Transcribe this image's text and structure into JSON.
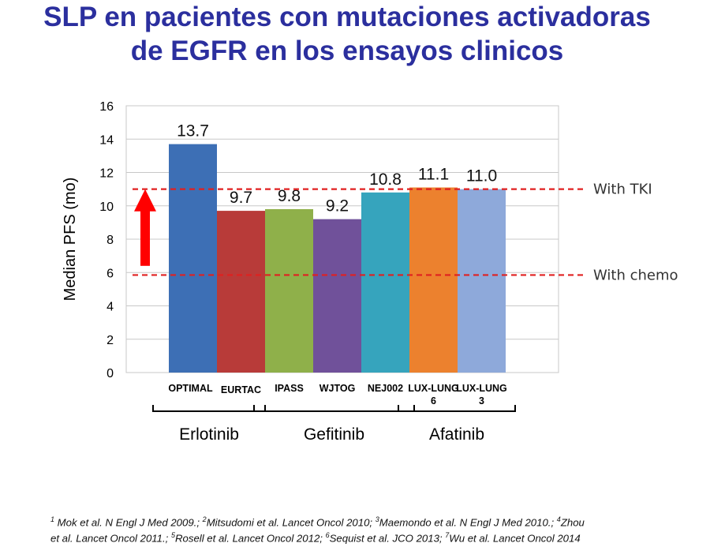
{
  "title": {
    "line1": "SLP en pacientes con mutaciones activadoras",
    "line2": "de EGFR en los ensayos clinicos"
  },
  "chart_data": {
    "type": "bar",
    "categories": [
      "OPTIMAL",
      "EURTAC",
      "IPASS",
      "WJTOG",
      "NEJ002",
      "LUX-LUNG 6",
      "LUX-LUNG 3"
    ],
    "category_lines": [
      [
        "OPTIMAL"
      ],
      [
        "EURTAC"
      ],
      [
        "IPASS"
      ],
      [
        "WJTOG"
      ],
      [
        "NEJ002"
      ],
      [
        "LUX-LUNG",
        "6"
      ],
      [
        "LUX-LUNG",
        "3"
      ]
    ],
    "values": [
      13.7,
      9.7,
      9.8,
      9.2,
      10.8,
      11.1,
      11.0
    ],
    "value_labels": [
      "13.7",
      "9.7",
      "9.8",
      "9.2",
      "10.8",
      "11.1",
      "11.0"
    ],
    "bar_colors": [
      "#3d6fb5",
      "#b83b39",
      "#8fb04a",
      "#70519a",
      "#36a4bd",
      "#ec812e",
      "#8ea9da"
    ],
    "ylabel": "Median PFS (mo)",
    "ylim": [
      0,
      16
    ],
    "yticks": [
      0,
      2,
      4,
      6,
      8,
      10,
      12,
      14,
      16
    ],
    "grid": true,
    "groups": [
      {
        "name": "Erlotinib",
        "from": 0,
        "to": 1
      },
      {
        "name": "Gefitinib",
        "from": 2,
        "to": 4
      },
      {
        "name": "Afatinib",
        "from": 5,
        "to": 6
      }
    ],
    "reference_lines": [
      {
        "label": "With TKI",
        "value": 11.0,
        "color": "#e02020"
      },
      {
        "label": "With chemo",
        "value": 5.85,
        "color": "#e02020"
      }
    ],
    "arrow": {
      "from": 6.4,
      "to": 10.9,
      "color": "#ff0000"
    }
  },
  "footnote": {
    "line1": [
      {
        "sup": "1",
        "text": " Mok et al. N Engl J Med 2009.; "
      },
      {
        "sup": "2",
        "text": "Mitsudomi et al. Lancet Oncol 2010; "
      },
      {
        "sup": "3",
        "text": "Maemondo et al. N Engl J Med 2010.; "
      },
      {
        "sup": "4",
        "text": "Zhou"
      }
    ],
    "line2": [
      {
        "sup": "",
        "text": "et al. Lancet Oncol 2011.; "
      },
      {
        "sup": "5",
        "text": "Rosell et al. Lancet Oncol 2012; "
      },
      {
        "sup": "6",
        "text": "Sequist et al. JCO 2013; "
      },
      {
        "sup": "7",
        "text": "Wu et al.  Lancet Oncol 2014"
      }
    ]
  }
}
